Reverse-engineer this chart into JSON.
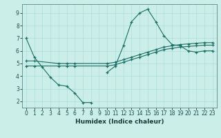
{
  "title": "",
  "xlabel": "Humidex (Indice chaleur)",
  "background_color": "#cceee8",
  "line_color": "#1a6e64",
  "xlim": [
    -0.5,
    23.5
  ],
  "ylim": [
    1.5,
    9.7
  ],
  "yticks": [
    2,
    3,
    4,
    5,
    6,
    7,
    8,
    9
  ],
  "xticks": [
    0,
    1,
    2,
    3,
    4,
    5,
    6,
    7,
    8,
    9,
    10,
    11,
    12,
    13,
    14,
    15,
    16,
    17,
    18,
    19,
    20,
    21,
    22,
    23
  ],
  "series": [
    {
      "x": [
        0,
        1,
        2,
        3,
        4,
        5,
        6,
        7,
        8,
        9,
        10,
        11,
        12,
        13,
        14,
        15,
        16,
        17,
        18,
        19,
        20,
        21,
        22,
        23
      ],
      "y": [
        7.0,
        5.5,
        4.7,
        3.9,
        3.3,
        3.2,
        2.65,
        1.9,
        1.9,
        null,
        4.3,
        4.8,
        6.4,
        8.3,
        9.0,
        9.3,
        8.3,
        7.2,
        6.5,
        6.4,
        6.0,
        5.9,
        6.0,
        6.0
      ]
    },
    {
      "x": [
        0,
        1,
        4,
        5,
        6,
        10,
        11,
        12,
        13,
        14,
        15,
        16,
        17,
        18,
        19,
        20,
        21,
        22,
        23
      ],
      "y": [
        5.2,
        5.2,
        5.0,
        5.0,
        5.0,
        5.0,
        5.1,
        5.3,
        5.5,
        5.7,
        5.9,
        6.1,
        6.3,
        6.4,
        6.5,
        6.55,
        6.6,
        6.65,
        6.65
      ]
    },
    {
      "x": [
        0,
        1,
        4,
        5,
        6,
        10,
        11,
        12,
        13,
        14,
        15,
        16,
        17,
        18,
        19,
        20,
        21,
        22,
        23
      ],
      "y": [
        4.8,
        4.8,
        4.8,
        4.8,
        4.8,
        4.8,
        4.9,
        5.1,
        5.3,
        5.5,
        5.7,
        5.9,
        6.1,
        6.2,
        6.3,
        6.35,
        6.4,
        6.45,
        6.45
      ]
    }
  ],
  "grid_color": "#aaddda",
  "spine_color": "#558888"
}
